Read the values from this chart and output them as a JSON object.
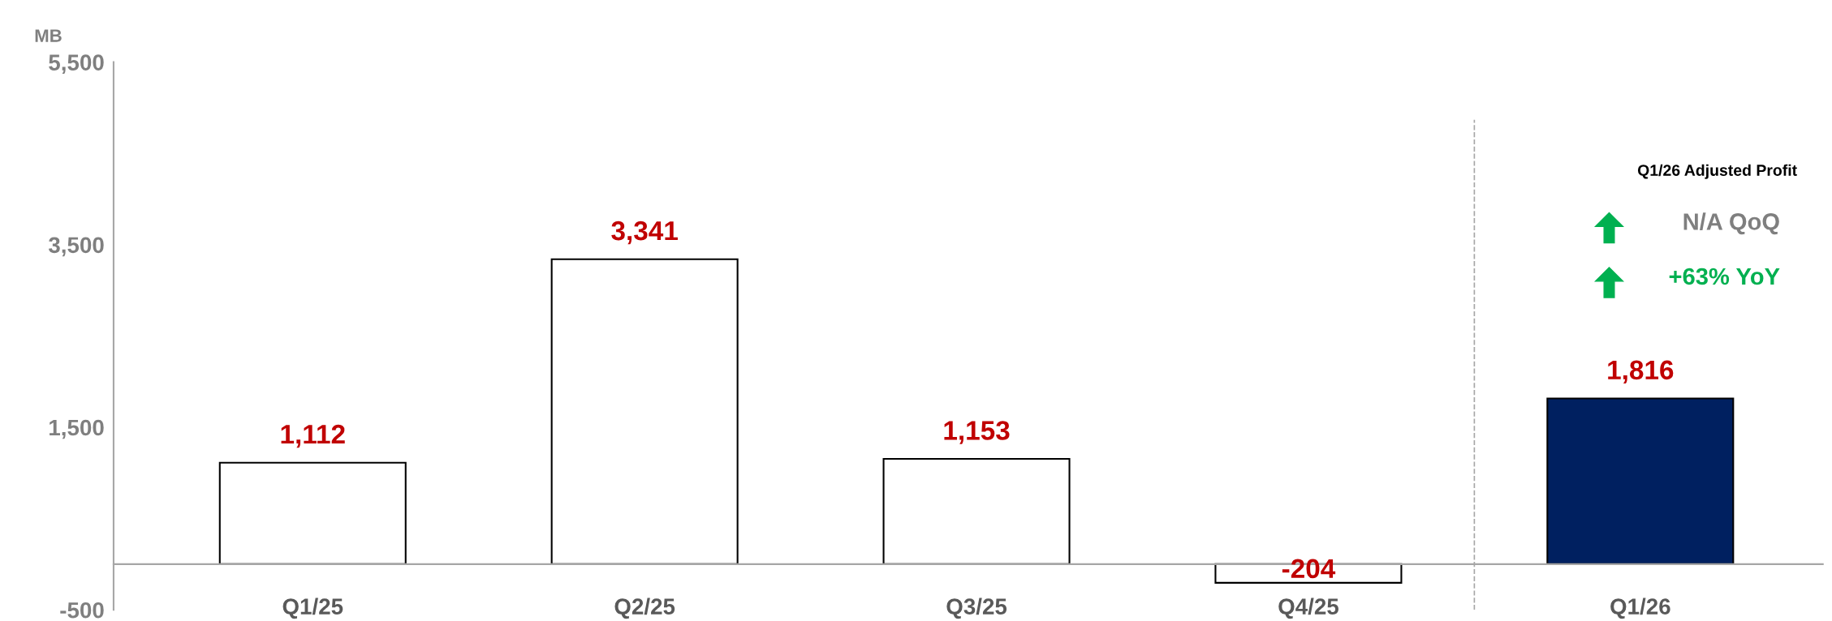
{
  "chart_data": {
    "type": "bar",
    "ylabel": "MB",
    "categories": [
      "Q1/25",
      "Q2/25",
      "Q3/25",
      "Q4/25",
      "Q1/26"
    ],
    "values": [
      1112,
      3341,
      1153,
      -204,
      1816
    ],
    "colors": [
      "#ffffff",
      "#ffffff",
      "#ffffff",
      "#ffffff",
      "#002060"
    ],
    "value_labels": [
      "1,112",
      "3,341",
      "1,153",
      "-204",
      "1,816"
    ],
    "ylim": [
      -500,
      5500
    ],
    "yticks": [
      {
        "value": -500,
        "label": "-500"
      },
      {
        "value": 1500,
        "label": "1,500"
      },
      {
        "value": 3500,
        "label": "3,500"
      },
      {
        "value": 5500,
        "label": "5,500"
      }
    ],
    "grid": false,
    "annotations": [
      "Q1/26 Adjusted Profit",
      "N/A QoQ",
      "+63% YoY"
    ]
  }
}
